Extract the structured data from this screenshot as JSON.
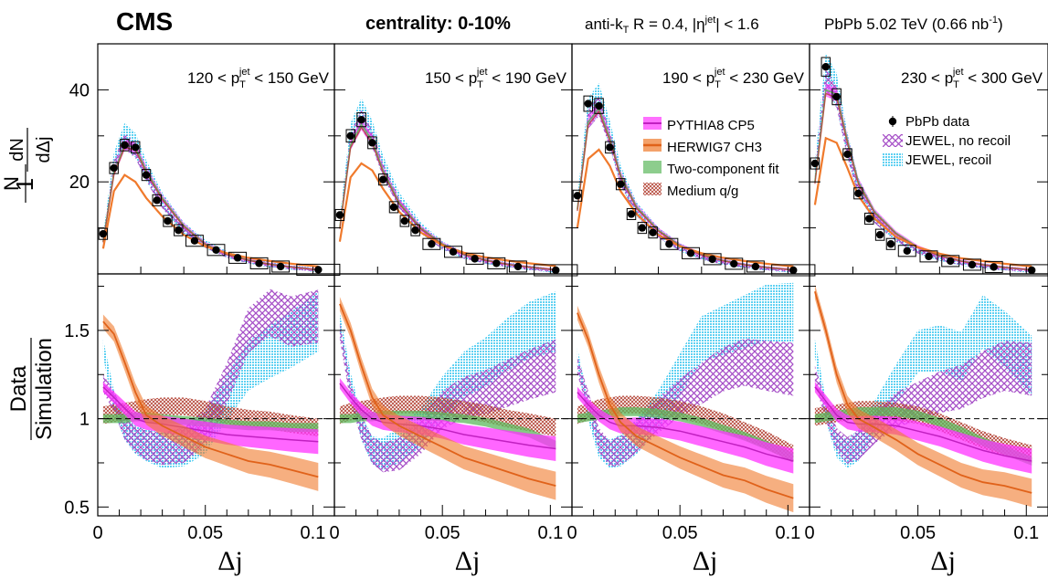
{
  "header": {
    "experiment": "CMS",
    "centrality": "centrality: 0-10%",
    "selection": "anti-kT R = 0.4, |ηjet| < 1.6",
    "dataset": "PbPb 5.02 TeV (0.66 nb-1)"
  },
  "colors": {
    "data": "#000000",
    "pythia": "#ff33ff",
    "herwig": "#f07a2c",
    "twocomp": "#5cb85c",
    "mediumqg": "#b5473a",
    "jewel_norecoil": "#a54ec7",
    "jewel_recoil": "#5fd1f2"
  },
  "chart_data": {
    "type": "line",
    "xlabel": "Δj",
    "ylabel_top": "1/N dN/dΔj",
    "ylabel_bottom": "Data/Simulation",
    "xlim": [
      0,
      0.11
    ],
    "ylim_top": [
      0,
      50
    ],
    "ylim_bottom": [
      0.45,
      1.82
    ],
    "x_ticks": [
      "0",
      "0.05",
      "0.1"
    ],
    "y_ticks_top": [
      "20",
      "40"
    ],
    "y_ticks_bottom": [
      "0.5",
      "1",
      "1.5"
    ],
    "reference_line": 1,
    "legend": {
      "pythia": "PYTHIA8 CP5",
      "herwig": "HERWIG7 CH3",
      "twocomp": "Two-component fit",
      "mediumqg": "Medium q/g",
      "data": "PbPb data",
      "jewel_norecoil": "JEWEL, no recoil",
      "jewel_recoil": "JEWEL, recoil"
    },
    "panels": [
      {
        "label": "120 < pTjet < 150 GeV",
        "data": {
          "x": [
            0.0025,
            0.0075,
            0.0125,
            0.0175,
            0.0225,
            0.0275,
            0.0325,
            0.0375,
            0.045,
            0.055,
            0.065,
            0.075,
            0.085,
            0.1025
          ],
          "y": [
            8.7,
            23.0,
            28.0,
            27.5,
            21.5,
            16.0,
            11.5,
            9.5,
            7.2,
            5.2,
            3.5,
            2.3,
            1.6,
            0.9
          ]
        },
        "curves": {
          "herwig": {
            "x": [
              0.0025,
              0.0075,
              0.0125,
              0.0175,
              0.0225,
              0.03,
              0.04,
              0.05,
              0.06,
              0.07,
              0.08,
              0.09,
              0.1025
            ],
            "y": [
              5.5,
              18.0,
              21.5,
              20.0,
              16.5,
              12.5,
              8.5,
              6.0,
              4.5,
              3.5,
              2.8,
              2.2,
              1.6
            ]
          },
          "pythia": {
            "x": [
              0.0025,
              0.0075,
              0.0125,
              0.0175,
              0.0225,
              0.03,
              0.04,
              0.05,
              0.06,
              0.07,
              0.08,
              0.09,
              0.1025
            ],
            "y": [
              7.0,
              22.0,
              28.0,
              27.5,
              22.5,
              16.5,
              10.5,
              6.5,
              4.3,
              3.0,
              2.1,
              1.5,
              0.9
            ]
          },
          "jewel": {
            "x": [
              0.0025,
              0.0075,
              0.0125,
              0.0175,
              0.0225,
              0.03,
              0.04,
              0.05,
              0.06,
              0.07,
              0.08,
              0.09,
              0.1025
            ],
            "y": [
              7.5,
              24.0,
              30.0,
              28.0,
              22.5,
              16.0,
              10.0,
              6.5,
              4.2,
              2.9,
              2.0,
              1.4,
              0.8
            ]
          }
        },
        "ratio": {
          "x": [
            0.0025,
            0.0075,
            0.0125,
            0.0175,
            0.0225,
            0.03,
            0.04,
            0.05,
            0.06,
            0.07,
            0.08,
            0.09,
            0.1025
          ],
          "herwig": [
            1.55,
            1.48,
            1.32,
            1.15,
            1.02,
            0.96,
            0.9,
            0.84,
            0.8,
            0.76,
            0.74,
            0.71,
            0.67
          ],
          "pythia": [
            1.18,
            1.12,
            1.06,
            1.0,
            0.98,
            0.97,
            0.95,
            0.93,
            0.91,
            0.9,
            0.89,
            0.88,
            0.87
          ],
          "twocomp": [
            1.0,
            1.0,
            1.0,
            1.01,
            1.01,
            1.0,
            0.99,
            0.98,
            0.97,
            0.96,
            0.96,
            0.95,
            0.95
          ],
          "mediumqg": [
            1.02,
            1.03,
            1.04,
            1.05,
            1.06,
            1.07,
            1.07,
            1.05,
            1.02,
            1.0,
            0.99,
            0.97,
            0.95
          ],
          "jewel_norecoil": [
            1.2,
            1.1,
            0.95,
            0.88,
            0.85,
            0.83,
            0.85,
            0.95,
            1.2,
            1.5,
            1.6,
            1.55,
            1.58
          ],
          "jewel_recoil": [
            1.4,
            1.1,
            0.95,
            0.88,
            0.85,
            0.82,
            0.84,
            0.92,
            1.12,
            1.3,
            1.38,
            1.45,
            1.55
          ]
        }
      },
      {
        "label": "150 < pTjet < 190 GeV",
        "data": {
          "x": [
            0.0025,
            0.0075,
            0.0125,
            0.0175,
            0.0225,
            0.0275,
            0.0325,
            0.0375,
            0.045,
            0.055,
            0.065,
            0.075,
            0.085,
            0.1025
          ],
          "y": [
            12.8,
            30.0,
            33.5,
            28.5,
            20.5,
            14.5,
            11.5,
            9.5,
            6.5,
            4.8,
            3.3,
            2.3,
            1.6,
            0.8
          ]
        },
        "curves": {
          "herwig": {
            "x": [
              0.0025,
              0.0075,
              0.0125,
              0.0175,
              0.0225,
              0.03,
              0.04,
              0.05,
              0.06,
              0.07,
              0.08,
              0.09,
              0.1025
            ],
            "y": [
              7.0,
              21.0,
              24.0,
              22.5,
              18.5,
              13.5,
              9.0,
              6.2,
              4.6,
              3.6,
              2.9,
              2.3,
              1.7
            ]
          },
          "pythia": {
            "x": [
              0.0025,
              0.0075,
              0.0125,
              0.0175,
              0.0225,
              0.03,
              0.04,
              0.05,
              0.06,
              0.07,
              0.08,
              0.09,
              0.1025
            ],
            "y": [
              10.0,
              28.0,
              32.5,
              29.0,
              22.5,
              15.5,
              10.0,
              6.5,
              4.3,
              3.0,
              2.1,
              1.5,
              0.9
            ]
          },
          "jewel": {
            "x": [
              0.0025,
              0.0075,
              0.0125,
              0.0175,
              0.0225,
              0.03,
              0.04,
              0.05,
              0.06,
              0.07,
              0.08,
              0.09,
              0.1025
            ],
            "y": [
              11.0,
              30.0,
              35.0,
              30.5,
              23.5,
              16.0,
              10.0,
              6.2,
              4.0,
              2.8,
              2.0,
              1.3,
              0.7
            ]
          }
        },
        "ratio": {
          "x": [
            0.0025,
            0.0075,
            0.0125,
            0.0175,
            0.0225,
            0.03,
            0.04,
            0.05,
            0.06,
            0.07,
            0.08,
            0.09,
            0.1025
          ],
          "herwig": [
            1.65,
            1.5,
            1.3,
            1.12,
            1.02,
            0.96,
            0.9,
            0.84,
            0.78,
            0.74,
            0.7,
            0.66,
            0.62
          ],
          "pythia": [
            1.2,
            1.12,
            1.05,
            1.0,
            0.98,
            0.97,
            0.96,
            0.94,
            0.91,
            0.89,
            0.87,
            0.85,
            0.83
          ],
          "twocomp": [
            1.0,
            1.0,
            1.01,
            1.01,
            1.02,
            1.02,
            1.02,
            1.01,
            1.0,
            0.98,
            0.95,
            0.92,
            0.85
          ],
          "mediumqg": [
            1.02,
            1.04,
            1.05,
            1.06,
            1.07,
            1.08,
            1.08,
            1.07,
            1.05,
            1.03,
            1.0,
            0.98,
            0.95
          ],
          "jewel_norecoil": [
            1.5,
            1.15,
            0.95,
            0.82,
            0.78,
            0.8,
            0.9,
            1.05,
            1.12,
            1.15,
            1.2,
            1.25,
            1.3
          ],
          "jewel_recoil": [
            1.55,
            1.2,
            0.95,
            0.82,
            0.8,
            0.85,
            0.95,
            1.12,
            1.25,
            1.32,
            1.42,
            1.5,
            1.55
          ]
        }
      },
      {
        "label": "190 < pTjet < 230 GeV",
        "data": {
          "x": [
            0.0025,
            0.0075,
            0.0125,
            0.0175,
            0.0225,
            0.0275,
            0.0325,
            0.0375,
            0.045,
            0.055,
            0.065,
            0.075,
            0.085,
            0.1025
          ],
          "y": [
            17.0,
            37.0,
            36.5,
            27.5,
            19.5,
            13.0,
            10.0,
            9.0,
            6.5,
            4.5,
            3.2,
            2.2,
            1.6,
            0.8
          ]
        },
        "curves": {
          "herwig": {
            "x": [
              0.0025,
              0.0075,
              0.0125,
              0.0175,
              0.0225,
              0.03,
              0.04,
              0.05,
              0.06,
              0.07,
              0.08,
              0.09,
              0.1025
            ],
            "y": [
              10.0,
              25.0,
              27.0,
              23.5,
              18.0,
              13.0,
              8.5,
              6.0,
              4.5,
              3.5,
              2.8,
              2.2,
              1.6
            ]
          },
          "pythia": {
            "x": [
              0.0025,
              0.0075,
              0.0125,
              0.0175,
              0.0225,
              0.03,
              0.04,
              0.05,
              0.06,
              0.07,
              0.08,
              0.09,
              0.1025
            ],
            "y": [
              14.0,
              33.0,
              36.0,
              29.5,
              21.5,
              14.5,
              9.5,
              6.2,
              4.2,
              2.9,
              2.0,
              1.4,
              0.9
            ]
          },
          "jewel": {
            "x": [
              0.0025,
              0.0075,
              0.0125,
              0.0175,
              0.0225,
              0.03,
              0.04,
              0.05,
              0.06,
              0.07,
              0.08,
              0.09,
              0.1025
            ],
            "y": [
              15.0,
              35.0,
              38.0,
              30.5,
              21.5,
              14.0,
              9.0,
              5.8,
              3.8,
              2.6,
              1.8,
              1.2,
              0.7
            ]
          }
        },
        "ratio": {
          "x": [
            0.0025,
            0.0075,
            0.0125,
            0.0175,
            0.0225,
            0.03,
            0.04,
            0.05,
            0.06,
            0.07,
            0.08,
            0.09,
            0.1025
          ],
          "herwig": [
            1.6,
            1.45,
            1.25,
            1.08,
            0.98,
            0.9,
            0.84,
            0.78,
            0.73,
            0.68,
            0.65,
            0.6,
            0.55
          ],
          "pythia": [
            1.15,
            1.08,
            1.02,
            0.98,
            0.96,
            0.96,
            0.95,
            0.93,
            0.9,
            0.87,
            0.84,
            0.8,
            0.76
          ],
          "twocomp": [
            1.0,
            1.01,
            1.02,
            1.03,
            1.04,
            1.04,
            1.03,
            1.01,
            0.98,
            0.94,
            0.9,
            0.85,
            0.78
          ],
          "mediumqg": [
            1.02,
            1.04,
            1.06,
            1.07,
            1.08,
            1.08,
            1.07,
            1.05,
            1.02,
            0.98,
            0.93,
            0.88,
            0.8
          ],
          "jewel_norecoil": [
            1.3,
            1.1,
            0.88,
            0.8,
            0.82,
            0.9,
            1.02,
            1.12,
            1.2,
            1.28,
            1.32,
            1.3,
            1.28
          ],
          "jewel_recoil": [
            1.35,
            1.05,
            0.85,
            0.8,
            0.82,
            0.9,
            1.05,
            1.25,
            1.45,
            1.5,
            1.55,
            1.6,
            1.6
          ]
        }
      },
      {
        "label": "230 < pTjet < 300 GeV",
        "data": {
          "x": [
            0.0025,
            0.0075,
            0.0125,
            0.0175,
            0.0225,
            0.0275,
            0.0325,
            0.0375,
            0.045,
            0.055,
            0.065,
            0.075,
            0.085,
            0.1025
          ],
          "y": [
            24.0,
            45.0,
            38.5,
            26.0,
            17.5,
            12.0,
            8.5,
            6.5,
            5.0,
            3.8,
            2.8,
            2.0,
            1.5,
            0.8
          ]
        },
        "curves": {
          "herwig": {
            "x": [
              0.0025,
              0.0075,
              0.0125,
              0.0175,
              0.0225,
              0.03,
              0.04,
              0.05,
              0.06,
              0.07,
              0.08,
              0.09,
              0.1025
            ],
            "y": [
              15.0,
              29.5,
              28.5,
              23.0,
              17.0,
              12.0,
              8.0,
              5.8,
              4.4,
              3.4,
              2.8,
              2.2,
              1.6
            ]
          },
          "pythia": {
            "x": [
              0.0025,
              0.0075,
              0.0125,
              0.0175,
              0.0225,
              0.03,
              0.04,
              0.05,
              0.06,
              0.07,
              0.08,
              0.09,
              0.1025
            ],
            "y": [
              20.0,
              40.0,
              39.0,
              29.0,
              20.0,
              13.5,
              8.8,
              5.8,
              4.0,
              2.8,
              2.0,
              1.4,
              0.9
            ]
          },
          "jewel": {
            "x": [
              0.0025,
              0.0075,
              0.0125,
              0.0175,
              0.0225,
              0.03,
              0.04,
              0.05,
              0.06,
              0.07,
              0.08,
              0.09,
              0.1025
            ],
            "y": [
              22.0,
              44.0,
              40.0,
              28.0,
              19.0,
              12.5,
              8.0,
              5.2,
              3.5,
              2.4,
              1.7,
              1.2,
              0.7
            ]
          }
        },
        "ratio": {
          "x": [
            0.0025,
            0.0075,
            0.0125,
            0.0175,
            0.0225,
            0.03,
            0.04,
            0.05,
            0.06,
            0.07,
            0.08,
            0.09,
            0.1025
          ],
          "herwig": [
            1.72,
            1.5,
            1.25,
            1.08,
            1.0,
            0.95,
            0.88,
            0.8,
            0.74,
            0.68,
            0.64,
            0.62,
            0.58
          ],
          "pythia": [
            1.18,
            1.1,
            1.02,
            0.98,
            0.97,
            0.97,
            0.96,
            0.93,
            0.9,
            0.86,
            0.82,
            0.79,
            0.76
          ],
          "twocomp": [
            1.0,
            1.01,
            1.02,
            1.03,
            1.04,
            1.04,
            1.04,
            1.02,
            0.98,
            0.93,
            0.87,
            0.82,
            0.76
          ],
          "mediumqg": [
            1.01,
            1.02,
            1.03,
            1.04,
            1.05,
            1.05,
            1.04,
            1.02,
            0.98,
            0.93,
            0.88,
            0.84,
            0.8
          ],
          "jewel_norecoil": [
            1.25,
            1.05,
            0.88,
            0.82,
            0.85,
            0.95,
            1.05,
            1.1,
            1.15,
            1.18,
            1.25,
            1.3,
            1.28
          ],
          "jewel_recoil": [
            1.4,
            1.05,
            0.85,
            0.8,
            0.85,
            1.0,
            1.2,
            1.38,
            1.4,
            1.35,
            1.55,
            1.45,
            1.3
          ]
        }
      }
    ]
  }
}
